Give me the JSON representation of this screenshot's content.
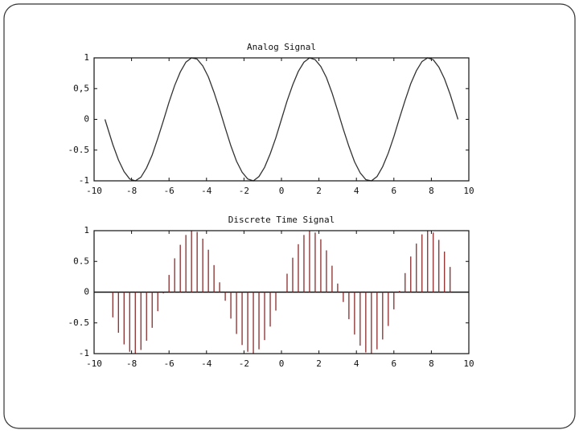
{
  "chart_data": [
    {
      "type": "line",
      "title": "Analog Signal",
      "color": "#333333",
      "x": [
        -9.42,
        -9.0,
        -8.7,
        -8.4,
        -8.1,
        -7.8,
        -7.5,
        -7.2,
        -6.9,
        -6.6,
        -6.3,
        -6.0,
        -5.7,
        -5.4,
        -5.1,
        -4.8,
        -4.5,
        -4.2,
        -3.9,
        -3.6,
        -3.3,
        -3.0,
        -2.7,
        -2.4,
        -2.1,
        -1.8,
        -1.5,
        -1.2,
        -0.9,
        -0.6,
        -0.3,
        0,
        0.3,
        0.6,
        0.9,
        1.2,
        1.5,
        1.8,
        2.1,
        2.4,
        2.7,
        3.0,
        3.3,
        3.6,
        3.9,
        4.2,
        4.5,
        4.8,
        5.1,
        5.4,
        5.7,
        6.0,
        6.3,
        6.6,
        6.9,
        7.2,
        7.5,
        7.8,
        8.1,
        8.4,
        8.7,
        9.0,
        9.42
      ],
      "values": [
        0,
        -0.41,
        -0.66,
        -0.85,
        -0.97,
        -1,
        -0.94,
        -0.79,
        -0.58,
        -0.31,
        -0.02,
        0.28,
        0.55,
        0.77,
        0.93,
        1,
        0.98,
        0.87,
        0.69,
        0.44,
        0.16,
        -0.14,
        -0.43,
        -0.68,
        -0.86,
        -0.97,
        -1,
        -0.93,
        -0.78,
        -0.56,
        -0.3,
        0,
        0.3,
        0.56,
        0.78,
        0.93,
        1,
        0.97,
        0.86,
        0.68,
        0.43,
        0.14,
        -0.16,
        -0.44,
        -0.69,
        -0.87,
        -0.98,
        -1,
        -0.93,
        -0.77,
        -0.55,
        -0.28,
        0.02,
        0.31,
        0.58,
        0.79,
        0.94,
        1,
        0.97,
        0.85,
        0.66,
        0.41,
        0
      ],
      "xlim": [
        -10,
        10
      ],
      "xticks": [
        -10,
        -8,
        -6,
        -4,
        -2,
        0,
        2,
        4,
        6,
        8,
        10
      ],
      "ylim": [
        -1,
        1
      ],
      "yticks": [
        -1,
        -0.5,
        0,
        {
          "value": 0.5,
          "label": "0,5"
        },
        1
      ],
      "grid": false
    },
    {
      "type": "stem",
      "title": "Discrete Time Signal",
      "color": "#8b2a2a",
      "x": [
        -9.0,
        -8.7,
        -8.4,
        -8.1,
        -7.8,
        -7.5,
        -7.2,
        -6.9,
        -6.6,
        -6.3,
        -6.0,
        -5.7,
        -5.4,
        -5.1,
        -4.8,
        -4.5,
        -4.2,
        -3.9,
        -3.6,
        -3.3,
        -3.0,
        -2.7,
        -2.4,
        -2.1,
        -1.8,
        -1.5,
        -1.2,
        -0.9,
        -0.6,
        -0.3,
        0,
        0.3,
        0.6,
        0.9,
        1.2,
        1.5,
        1.8,
        2.1,
        2.4,
        2.7,
        3.0,
        3.3,
        3.6,
        3.9,
        4.2,
        4.5,
        4.8,
        5.1,
        5.4,
        5.7,
        6.0,
        6.3,
        6.6,
        6.9,
        7.2,
        7.5,
        7.8,
        8.1,
        8.4,
        8.7,
        9.0
      ],
      "values": [
        -0.41,
        -0.66,
        -0.85,
        -0.97,
        -1,
        -0.94,
        -0.79,
        -0.58,
        -0.31,
        -0.02,
        0.28,
        0.55,
        0.77,
        0.93,
        1,
        0.98,
        0.87,
        0.69,
        0.44,
        0.16,
        -0.14,
        -0.43,
        -0.68,
        -0.86,
        -0.97,
        -1,
        -0.93,
        -0.78,
        -0.56,
        -0.3,
        0,
        0.3,
        0.56,
        0.78,
        0.93,
        1,
        0.97,
        0.86,
        0.68,
        0.43,
        0.14,
        -0.16,
        -0.44,
        -0.69,
        -0.87,
        -0.98,
        -1,
        -0.93,
        -0.77,
        -0.55,
        -0.28,
        0.02,
        0.31,
        0.58,
        0.79,
        0.94,
        1,
        0.97,
        0.85,
        0.66,
        0.41
      ],
      "xlim": [
        -10,
        10
      ],
      "xticks": [
        -10,
        -8,
        -6,
        -4,
        -2,
        0,
        2,
        4,
        6,
        8,
        10
      ],
      "ylim": [
        -1,
        1
      ],
      "yticks": [
        -1,
        -0.5,
        0,
        0.5,
        1
      ],
      "grid": false
    }
  ]
}
